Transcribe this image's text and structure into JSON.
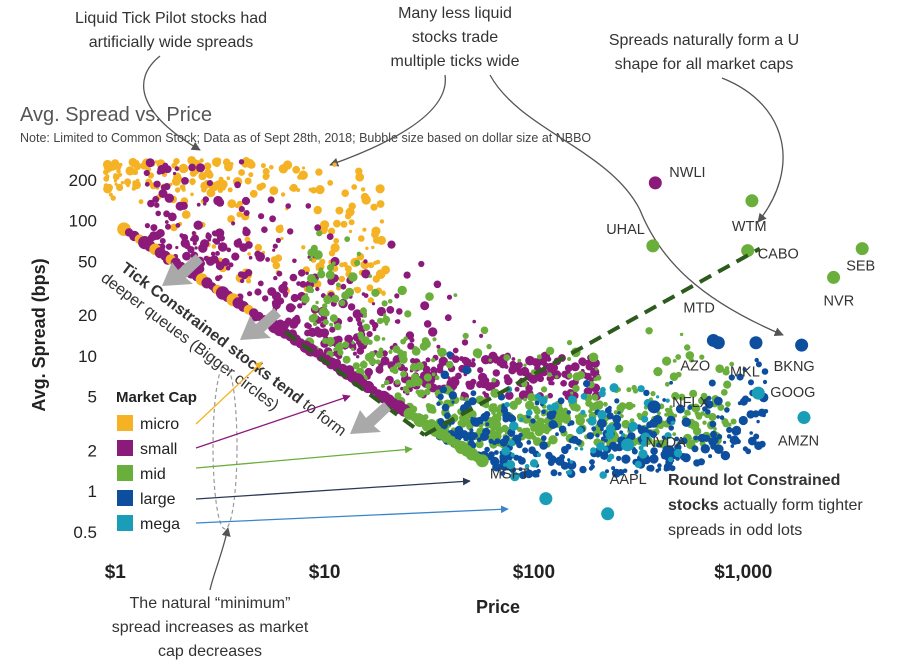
{
  "chart_data": {
    "type": "scatter",
    "title": "Avg. Spread vs. Price",
    "subtitle": "Note: Limited to Common Stock; Data as of Sept 28th, 2018; Bubble size based on dollar size at NBBO",
    "xlabel": "Price",
    "ylabel": "Avg. Spread (bps)",
    "x_scale": "log",
    "y_scale": "log",
    "xlim": [
      0.8,
      4500
    ],
    "ylim": [
      0.38,
      290
    ],
    "x_ticks": [
      1,
      10,
      100,
      1000
    ],
    "x_tick_labels": [
      "$1",
      "$10",
      "$100",
      "$1,000"
    ],
    "y_ticks": [
      0.5,
      1,
      2,
      5,
      10,
      20,
      50,
      100,
      200
    ],
    "y_tick_labels": [
      "0.5",
      "1",
      "2",
      "5",
      "10",
      "20",
      "50",
      "100",
      "200"
    ],
    "legend": {
      "title": "Market Cap",
      "placement": "left",
      "entries": [
        {
          "label": "micro",
          "color": "#F5B224"
        },
        {
          "label": "small",
          "color": "#8B1A7A"
        },
        {
          "label": "mid",
          "color": "#6AAE3C"
        },
        {
          "label": "large",
          "color": "#0D4E9E"
        },
        {
          "label": "mega",
          "color": "#1A9DB6"
        }
      ]
    },
    "labeled_points": [
      {
        "label": "NWLI",
        "x": 380,
        "y": 190,
        "cap": "small"
      },
      {
        "label": "UHAL",
        "x": 370,
        "y": 65,
        "cap": "mid"
      },
      {
        "label": "WTM",
        "x": 1100,
        "y": 140,
        "cap": "mid"
      },
      {
        "label": "CABO",
        "x": 1050,
        "y": 60,
        "cap": "mid"
      },
      {
        "label": "SEB",
        "x": 3700,
        "y": 62,
        "cap": "mid"
      },
      {
        "label": "NVR",
        "x": 2700,
        "y": 38,
        "cap": "mid"
      },
      {
        "label": "MTD",
        "x": 720,
        "y": 13,
        "cap": "large"
      },
      {
        "label": "AZO",
        "x": 760,
        "y": 12.5,
        "cap": "large"
      },
      {
        "label": "MKL",
        "x": 1150,
        "y": 12.5,
        "cap": "large"
      },
      {
        "label": "BKNG",
        "x": 1900,
        "y": 12,
        "cap": "large"
      },
      {
        "label": "GOOG",
        "x": 1180,
        "y": 5.3,
        "cap": "mega"
      },
      {
        "label": "AMZN",
        "x": 1950,
        "y": 3.5,
        "cap": "mega"
      },
      {
        "label": "NFLX",
        "x": 375,
        "y": 4.2,
        "cap": "large"
      },
      {
        "label": "NVDA",
        "x": 280,
        "y": 2.2,
        "cap": "mega"
      },
      {
        "label": "AAPL",
        "x": 225,
        "y": 0.68,
        "cap": "mega"
      },
      {
        "label": "MSFT",
        "x": 114,
        "y": 0.88,
        "cap": "mega"
      }
    ],
    "trend_lines": [
      {
        "name": "tick-constrained",
        "points": [
          [
            6.5,
            15
          ],
          [
            30,
            2.6
          ]
        ]
      },
      {
        "name": "round-lot-constrained",
        "points": [
          [
            30,
            2.6
          ],
          [
            1200,
            62
          ]
        ]
      }
    ]
  },
  "annotations": {
    "pilot": [
      "Liquid Tick Pilot stocks had",
      "artificially wide spreads"
    ],
    "less_liquid": [
      "Many less liquid",
      "stocks trade",
      "multiple ticks wide"
    ],
    "u_shape": [
      "Spreads naturally form a U",
      "shape for all market caps"
    ],
    "tick_constrained_bold": "Tick Constrained stocks tend",
    "tick_constrained_rest": "to form",
    "tick_constrained_line2": "deeper queues (Bigger circles)",
    "round_lot": {
      "line1_bold": "Round lot Constrained",
      "line2_bold": "stocks",
      "line2_rest": " actually form tighter",
      "line3": "spreads in odd lots"
    },
    "minimum": [
      "The natural “minimum”",
      "spread increases as market",
      "cap decreases"
    ]
  }
}
